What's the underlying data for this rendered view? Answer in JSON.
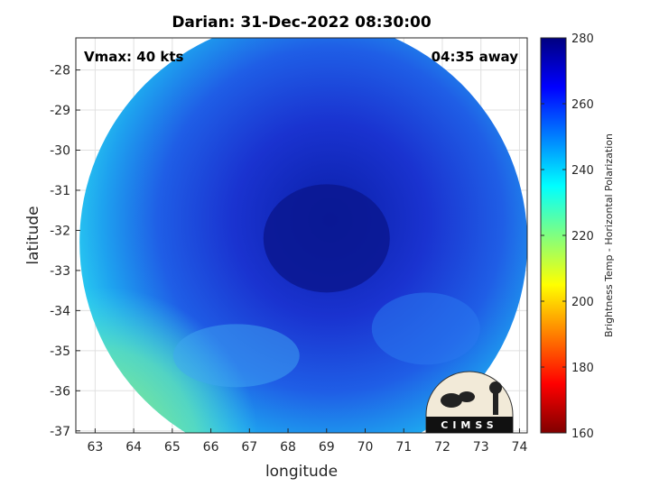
{
  "chart_data": {
    "type": "heatmap",
    "title": "Darian: 31-Dec-2022 08:30:00",
    "annotations": {
      "vmax": "Vmax: 40 kts",
      "away": "04:35 away"
    },
    "xlabel": "longitude",
    "ylabel": "latitude",
    "xlim": [
      62.5,
      74.2
    ],
    "ylim": [
      -37.05,
      -27.2
    ],
    "x_ticks": [
      63,
      64,
      65,
      66,
      67,
      68,
      69,
      70,
      71,
      72,
      73,
      74
    ],
    "y_ticks": [
      -28,
      -29,
      -30,
      -31,
      -32,
      -33,
      -34,
      -35,
      -36,
      -37
    ],
    "grid": true,
    "colorbar": {
      "label": "Brightness Temp - Horizontal Polarization",
      "range": [
        160,
        280
      ],
      "ticks": [
        160,
        180,
        200,
        220,
        240,
        260,
        280
      ],
      "colormap": "jet"
    },
    "swath_center": [
      68.4,
      -32.3
    ],
    "storm_center": [
      69.0,
      -32.2
    ],
    "logo": "CIMSS"
  }
}
